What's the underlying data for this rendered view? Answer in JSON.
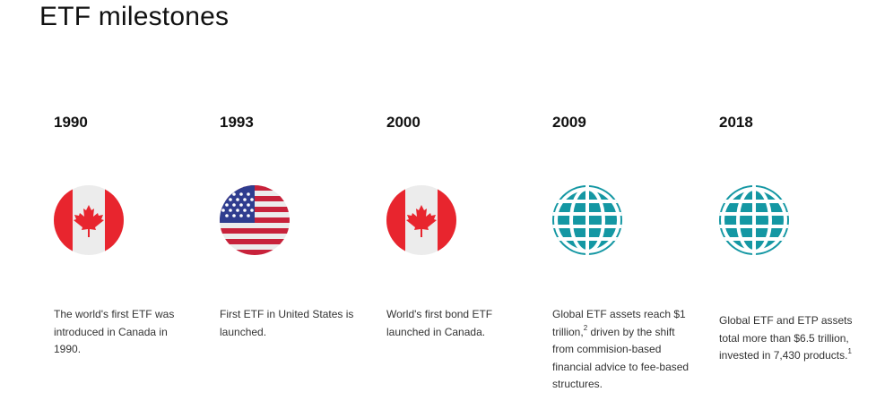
{
  "page": {
    "title": "ETF milestones"
  },
  "milestones": [
    {
      "year": "1990",
      "icon": "canada-flag-icon",
      "text": "The world's first ETF was introduced in Canada in 1990."
    },
    {
      "year": "1993",
      "icon": "us-flag-icon",
      "text": "First ETF in United States is launched."
    },
    {
      "year": "2000",
      "icon": "canada-flag-icon",
      "text": "World's first bond ETF launched in Canada."
    },
    {
      "year": "2009",
      "icon": "globe-icon",
      "text_a": "Global ETF assets reach $1 trillion,",
      "sup": "2",
      "text_b": " driven by the shift from commision-based financial advice to fee-based structures."
    },
    {
      "year": "2018",
      "icon": "globe-icon",
      "text_a": "Global ETF and ETP assets total more than $6.5 trillion, invested in 7,430 products.",
      "sup": "1"
    }
  ],
  "colors": {
    "canada_red": "#e8252e",
    "flag_white": "#ececec",
    "us_blue": "#2f3d8f",
    "us_red": "#c8223b",
    "globe_teal": "#1497a3"
  }
}
